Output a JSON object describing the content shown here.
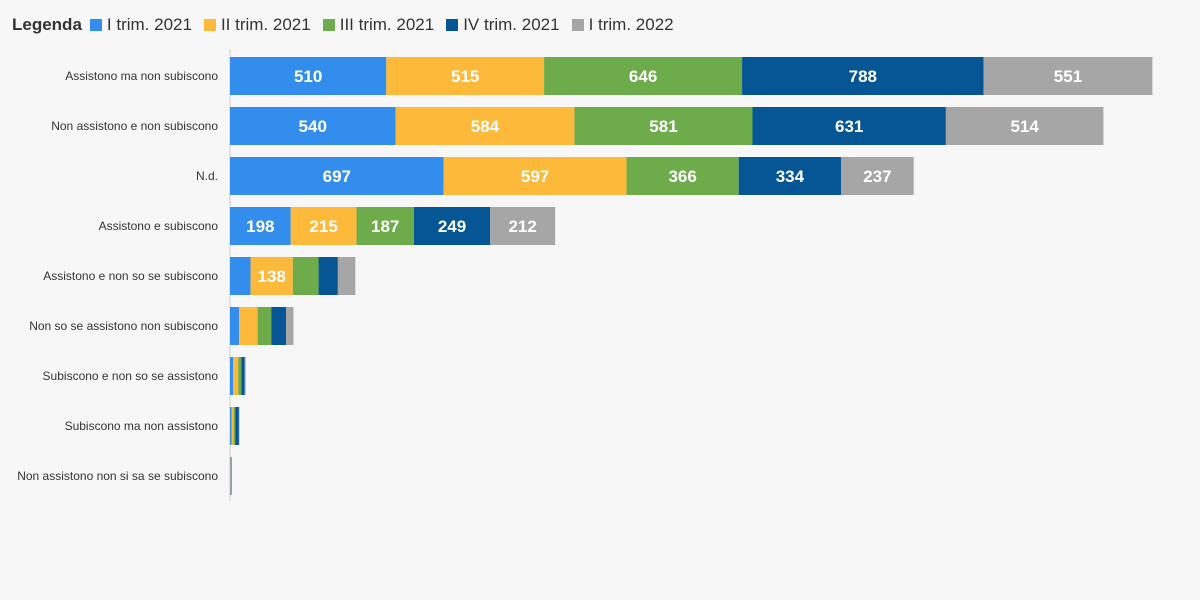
{
  "legend": {
    "title": "Legenda"
  },
  "chart_data": {
    "type": "bar",
    "orientation": "horizontal",
    "stacked": true,
    "categories": [
      "Assistono ma non subiscono",
      "Non assistono e non subiscono",
      "N.d.",
      "Assistono e subiscono",
      "Assistono e non so se subiscono",
      "Non so se assistono non subiscono",
      "Subiscono e non so se assistono",
      "Subiscono ma non assistono",
      "Non assistono non si sa se subiscono"
    ],
    "series": [
      {
        "name": "I trim. 2021",
        "color": "#338ded",
        "values": [
          510,
          540,
          697,
          198,
          67,
          30,
          10,
          5,
          2
        ]
      },
      {
        "name": "II trim. 2021",
        "color": "#fdb93a",
        "values": [
          515,
          584,
          597,
          215,
          138,
          60,
          17,
          7,
          2
        ]
      },
      {
        "name": "III trim. 2021",
        "color": "#6eac4b",
        "values": [
          646,
          581,
          366,
          187,
          84,
          45,
          10,
          5,
          1
        ]
      },
      {
        "name": "IV trim. 2021",
        "color": "#065595",
        "values": [
          788,
          631,
          334,
          249,
          63,
          48,
          11,
          12,
          1
        ]
      },
      {
        "name": "I trim. 2022",
        "color": "#a6a6a6",
        "values": [
          551,
          514,
          237,
          212,
          57,
          24,
          3,
          2,
          0
        ]
      }
    ],
    "xlim": [
      0,
      3100
    ],
    "grid": false,
    "legend_position": "top-left"
  }
}
